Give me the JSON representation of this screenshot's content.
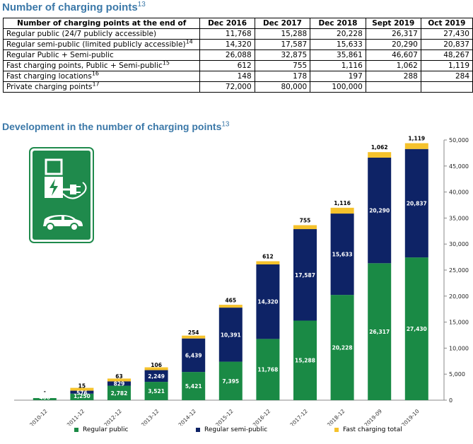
{
  "table": {
    "title": "Number of charging points",
    "title_ref": "13",
    "headers": [
      "Number of charging points at the end of",
      "Dec 2016",
      "Dec 2017",
      "Dec 2018",
      "Sept 2019",
      "Oct 2019"
    ],
    "rows": [
      {
        "label": "Regular public (24/7 publicly accessible)",
        "ref": "",
        "values": [
          "11,768",
          "15,288",
          "20,228",
          "26,317",
          "27,430"
        ]
      },
      {
        "label": "Regular semi-public (limited publicly accessible)",
        "ref": "14",
        "values": [
          "14,320",
          "17,587",
          "15,633",
          "20,290",
          "20,837"
        ]
      },
      {
        "label": "Regular Public + Semi-public",
        "ref": "",
        "values": [
          "26,088",
          "32,875",
          "35,861",
          "46,607",
          "48,267"
        ]
      },
      {
        "label": "Fast charging points, Public + Semi-public",
        "ref": "15",
        "values": [
          "612",
          "755",
          "1,116",
          "1,062",
          "1,119"
        ]
      },
      {
        "label": "Fast charging locations",
        "ref": "16",
        "values": [
          "148",
          "178",
          "197",
          "288",
          "284"
        ]
      },
      {
        "label": "Private charging points",
        "ref": "17",
        "values": [
          "72,000",
          "80,000",
          "100,000",
          "",
          ""
        ]
      }
    ]
  },
  "chart_data": {
    "type": "bar",
    "stacked": true,
    "title": "Development in the number of charging points",
    "title_ref": "13",
    "categories": [
      "2010-12",
      "2011-12",
      "2012-12",
      "2013-12",
      "2014-12",
      "2015-12",
      "2016-12",
      "2017-12",
      "2018-12",
      "2019-09",
      "2019-10"
    ],
    "series": [
      {
        "name": "Regular public",
        "color": "#1a8a45",
        "values": [
          400,
          1250,
          2782,
          3521,
          5421,
          7395,
          11768,
          15288,
          20228,
          26317,
          27430
        ],
        "labels": [
          "400",
          "1,250",
          "2,782",
          "3,521",
          "5,421",
          "7,395",
          "11,768",
          "15,288",
          "20,228",
          "26,317",
          "27,430"
        ]
      },
      {
        "name": "Regular semi-public",
        "color": "#0e2366",
        "values": [
          0,
          576,
          829,
          2249,
          6439,
          10391,
          14320,
          17587,
          15633,
          20290,
          20837
        ],
        "labels": [
          "",
          "576",
          "829",
          "2,249",
          "6,439",
          "10,391",
          "14,320",
          "17,587",
          "15,633",
          "20,290",
          "20,837"
        ]
      },
      {
        "name": "Fast charging total",
        "color": "#f5c22c",
        "values": [
          0,
          15,
          63,
          106,
          254,
          465,
          612,
          755,
          1116,
          1062,
          1119
        ],
        "labels": [
          "-",
          "15",
          "63",
          "106",
          "254",
          "465",
          "612",
          "755",
          "1,116",
          "1,062",
          "1,119"
        ]
      }
    ],
    "ylim": [
      0,
      50000
    ],
    "y_ticks": [
      "0",
      "5,000",
      "10,000",
      "15,000",
      "20,000",
      "25,000",
      "30,000",
      "35,000",
      "40,000",
      "45,000",
      "50,000"
    ],
    "y_axis_position": "right",
    "legend_position": "bottom",
    "grid": false
  }
}
